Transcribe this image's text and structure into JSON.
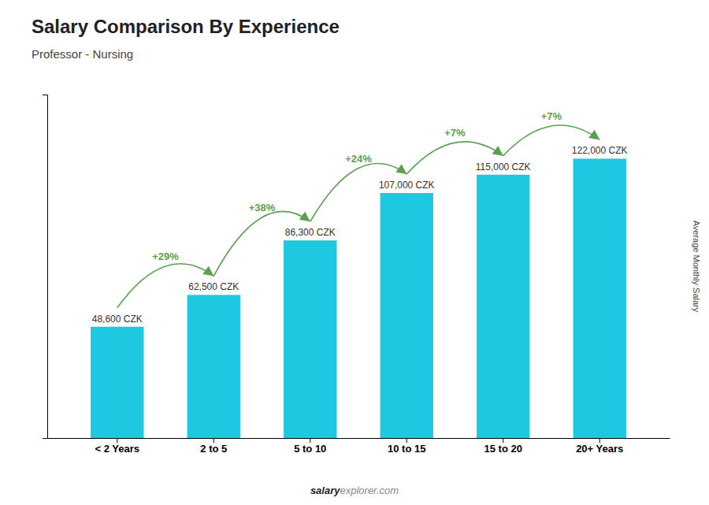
{
  "chart_data": {
    "type": "bar",
    "title": "Salary Comparison By Experience",
    "subtitle": "Professor - Nursing",
    "ylabel": "Average Monthly Salary",
    "footer": [
      "salary",
      "explorer.com"
    ],
    "categories": [
      "< 2 Years",
      "2 to 5",
      "5 to 10",
      "10 to 15",
      "15 to 20",
      "20+ Years"
    ],
    "values": [
      48600,
      62500,
      86300,
      107000,
      115000,
      122000
    ],
    "value_labels": [
      "48,600 CZK",
      "62,500 CZK",
      "86,300 CZK",
      "107,000 CZK",
      "115,000 CZK",
      "122,000 CZK"
    ],
    "data_labels": true,
    "color": "#1ec8e0",
    "ylim": [
      0,
      150000
    ],
    "grid": false,
    "tick_labels": "x",
    "annotations": [
      {
        "text": "+29%",
        "from": "< 2 Years",
        "to": "2 to 5"
      },
      {
        "text": "+38%",
        "from": "2 to 5",
        "to": "5 to 10"
      },
      {
        "text": "+24%",
        "from": "5 to 10",
        "to": "10 to 15"
      },
      {
        "text": "+7%",
        "from": "10 to 15",
        "to": "15 to 20"
      },
      {
        "text": "+7%",
        "from": "15 to 20",
        "to": "20+ Years"
      }
    ]
  }
}
